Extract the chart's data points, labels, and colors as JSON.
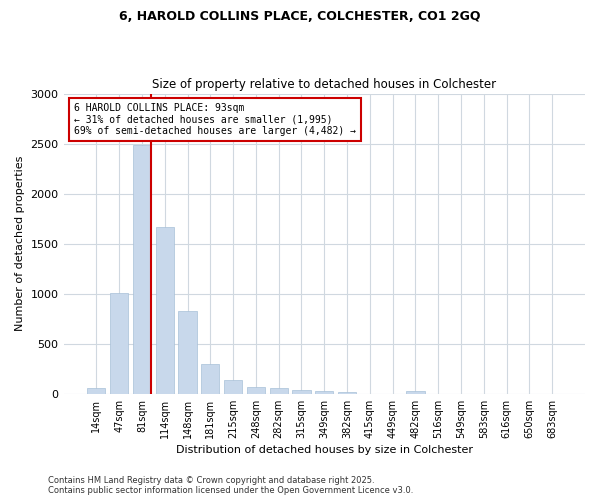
{
  "title_line1": "6, HAROLD COLLINS PLACE, COLCHESTER, CO1 2GQ",
  "title_line2": "Size of property relative to detached houses in Colchester",
  "xlabel": "Distribution of detached houses by size in Colchester",
  "ylabel": "Number of detached properties",
  "categories": [
    "14sqm",
    "47sqm",
    "81sqm",
    "114sqm",
    "148sqm",
    "181sqm",
    "215sqm",
    "248sqm",
    "282sqm",
    "315sqm",
    "349sqm",
    "382sqm",
    "415sqm",
    "449sqm",
    "482sqm",
    "516sqm",
    "549sqm",
    "583sqm",
    "616sqm",
    "650sqm",
    "683sqm"
  ],
  "values": [
    55,
    1005,
    2490,
    1665,
    825,
    295,
    140,
    65,
    55,
    40,
    30,
    15,
    0,
    0,
    30,
    0,
    0,
    0,
    0,
    0,
    0
  ],
  "bar_color": "#c8d8eb",
  "bar_edge_color": "#a8c0d8",
  "red_line_index": 2,
  "annotation_text": "6 HAROLD COLLINS PLACE: 93sqm\n← 31% of detached houses are smaller (1,995)\n69% of semi-detached houses are larger (4,482) →",
  "annotation_box_color": "#ffffff",
  "annotation_box_edge_color": "#cc0000",
  "vline_color": "#cc0000",
  "background_color": "#ffffff",
  "plot_bg_color": "#ffffff",
  "grid_color": "#d0d8e0",
  "ylim": [
    0,
    3000
  ],
  "yticks": [
    0,
    500,
    1000,
    1500,
    2000,
    2500,
    3000
  ],
  "footnote1": "Contains HM Land Registry data © Crown copyright and database right 2025.",
  "footnote2": "Contains public sector information licensed under the Open Government Licence v3.0."
}
